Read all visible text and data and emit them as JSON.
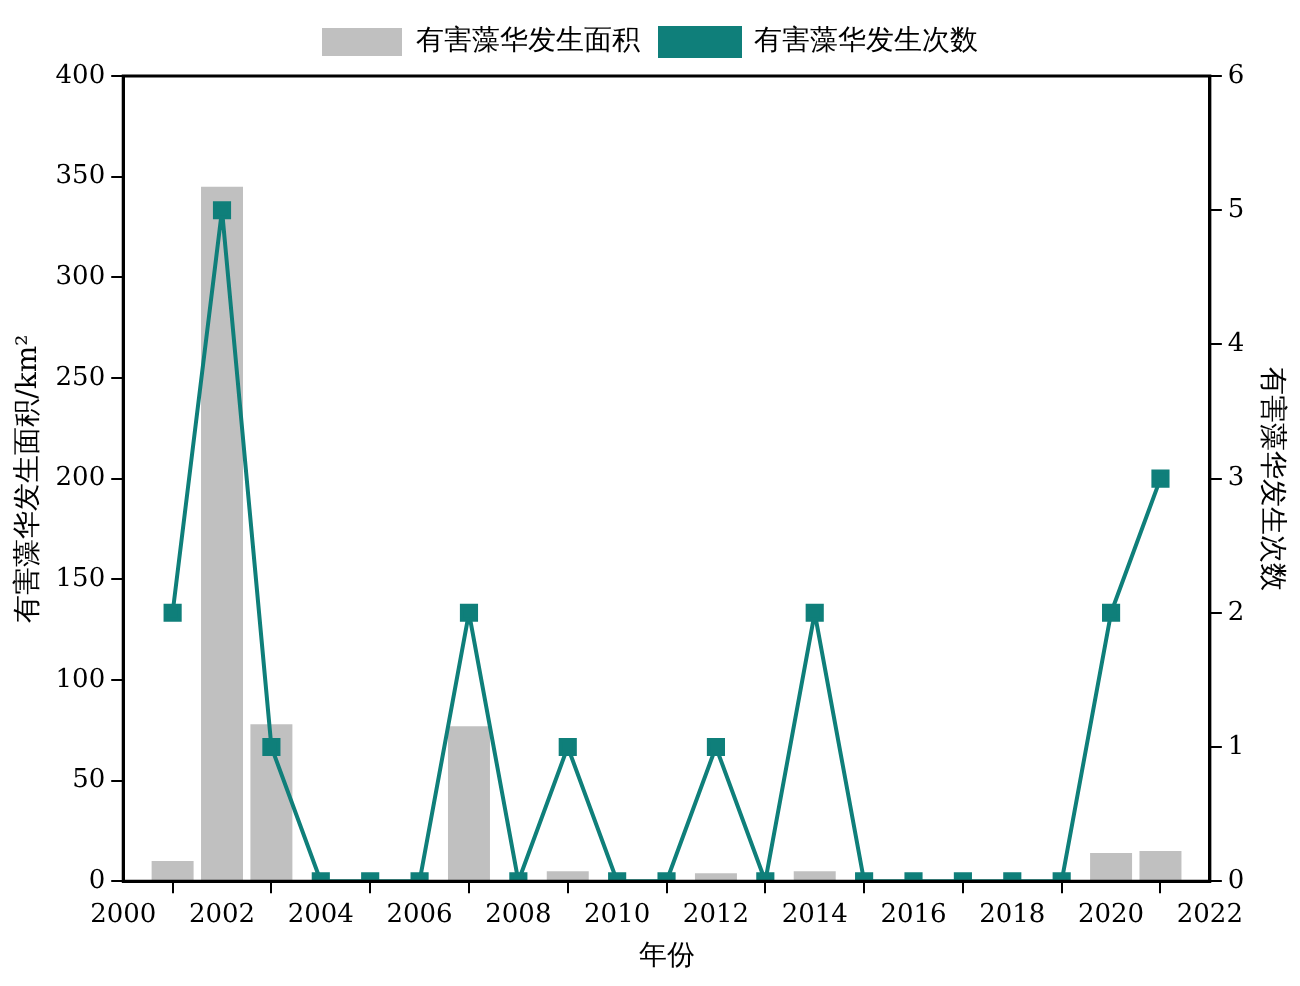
{
  "chart_data": {
    "type": "bar",
    "xlabel": "年份",
    "ylabel": "有害藻华发生面积/km²",
    "y2label": "有害藻华发生次数",
    "x": [
      2001,
      2002,
      2003,
      2004,
      2005,
      2006,
      2007,
      2008,
      2009,
      2010,
      2011,
      2012,
      2013,
      2014,
      2015,
      2016,
      2017,
      2018,
      2019,
      2020,
      2021
    ],
    "series": [
      {
        "name": "有害藻华发生面积",
        "color": "#c0c0c0",
        "values": [
          10,
          345,
          78,
          0,
          0,
          0,
          77,
          0,
          5,
          0,
          0,
          4,
          0,
          5,
          0,
          0,
          0,
          0,
          0,
          14,
          15
        ]
      },
      {
        "name": "有害藻华发生次数",
        "type": "line",
        "axis": "y2",
        "color": "#0f7f7a",
        "values": [
          2,
          5,
          1,
          0,
          0,
          0,
          2,
          0,
          1,
          0,
          0,
          1,
          0,
          2,
          0,
          0,
          0,
          0,
          0,
          2,
          3
        ]
      }
    ],
    "xlim": [
      2000,
      2022
    ],
    "xticks": [
      2000,
      2002,
      2004,
      2006,
      2008,
      2010,
      2012,
      2014,
      2016,
      2018,
      2020,
      2022
    ],
    "ylim": [
      0,
      400
    ],
    "yticks": [
      0,
      50,
      100,
      150,
      200,
      250,
      300,
      350,
      400
    ],
    "y2lim": [
      0,
      6
    ],
    "y2ticks": [
      0,
      1,
      2,
      3,
      4,
      5,
      6
    ],
    "grid": false,
    "legend": "top",
    "marker": "square",
    "line_style": "solid"
  }
}
